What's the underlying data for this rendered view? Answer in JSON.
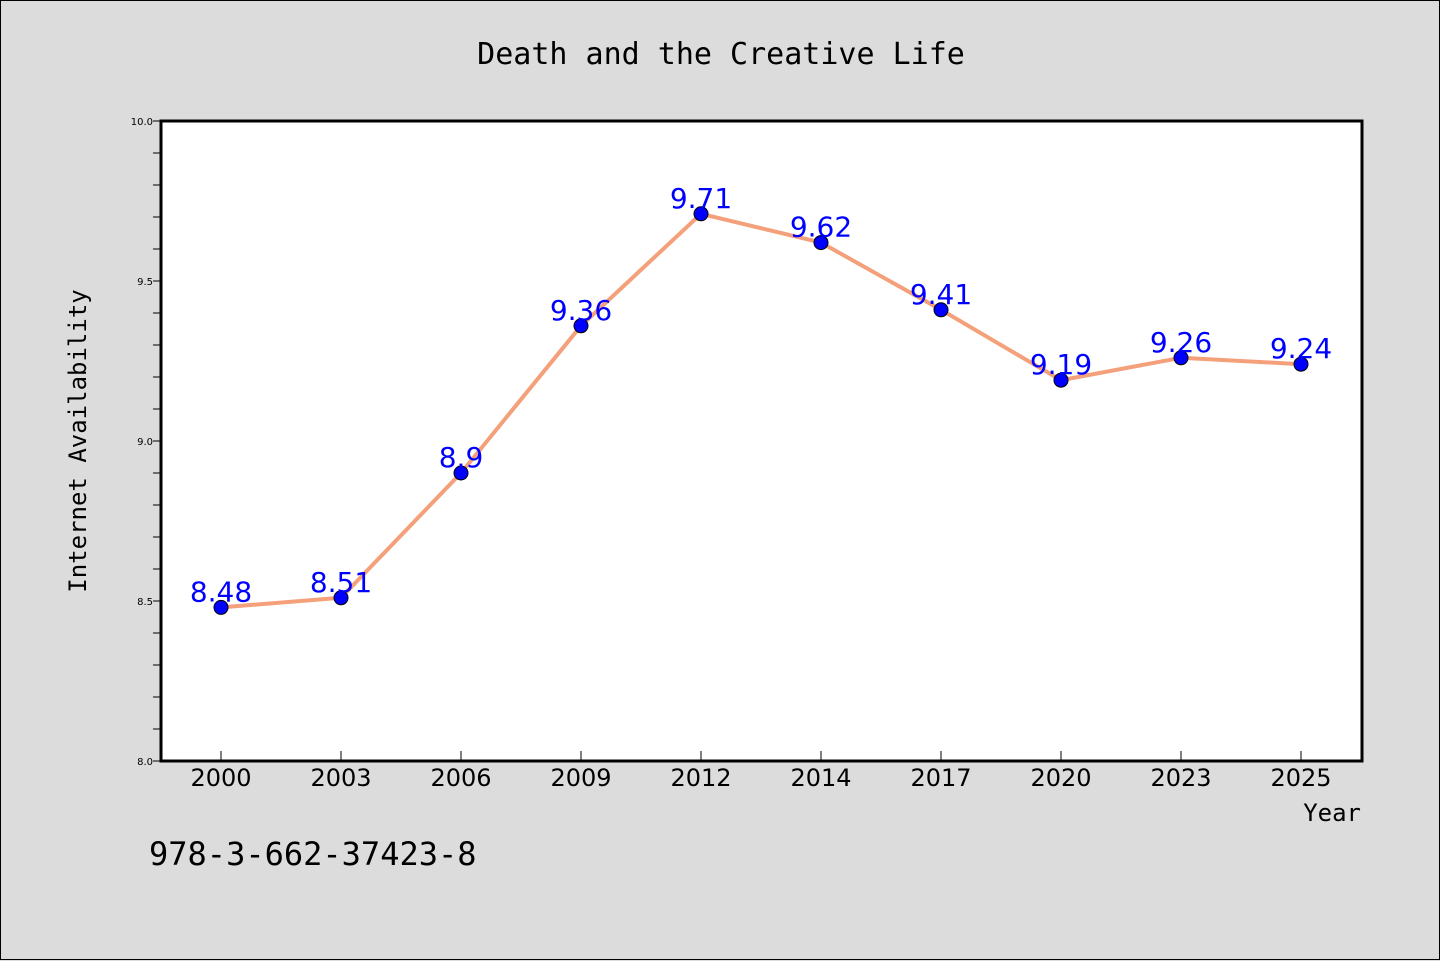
{
  "chart_data": {
    "type": "line",
    "title": "Death and the Creative Life",
    "xlabel": "Year",
    "ylabel": "Internet Availability",
    "categories": [
      "2000",
      "2003",
      "2006",
      "2009",
      "2012",
      "2014",
      "2017",
      "2020",
      "2023",
      "2025"
    ],
    "series": [
      {
        "values": [
          8.48,
          8.51,
          8.9,
          9.36,
          9.71,
          9.62,
          9.41,
          9.19,
          9.26,
          9.24
        ],
        "line_color": "#f4a07a",
        "marker_color": "#0000ff"
      }
    ],
    "data_labels": [
      "8.48",
      "8.51",
      "8.9",
      "9.36",
      "9.71",
      "9.62",
      "9.41",
      "9.19",
      "9.26",
      "9.24"
    ],
    "data_label_color": "#0000ff",
    "ylim": [
      8.0,
      10.0
    ],
    "yticks": [
      "8.0",
      "8.5",
      "9.0",
      "9.5",
      "10.0"
    ],
    "grid": false,
    "annotation": "978-3-662-37423-8"
  }
}
